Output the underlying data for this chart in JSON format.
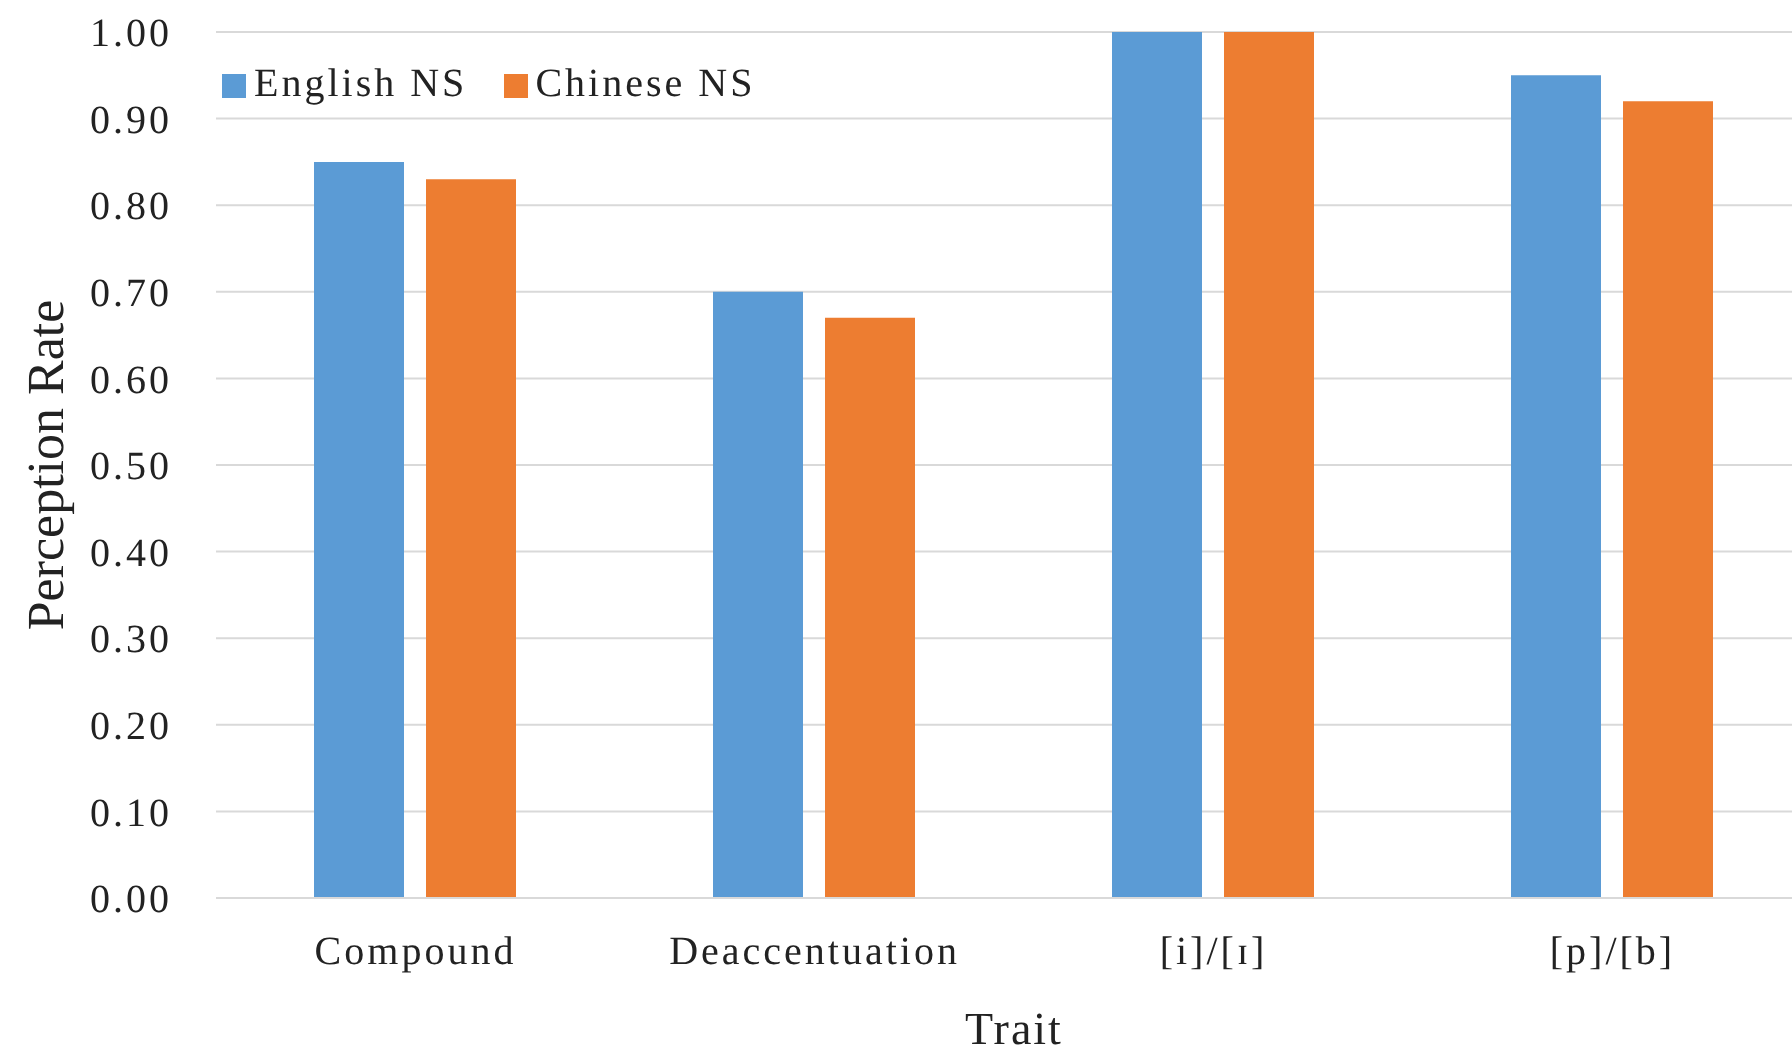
{
  "chart_data": {
    "type": "bar",
    "xlabel": "Trait",
    "ylabel": "Perception Rate",
    "categories": [
      "Compound",
      "Deaccentuation",
      "[i]/[ɪ]",
      "[p]/[b]"
    ],
    "series": [
      {
        "name": "English NS",
        "color": "#5b9bd5",
        "values": [
          0.85,
          0.7,
          1.0,
          0.95
        ]
      },
      {
        "name": "Chinese NS",
        "color": "#ed7d31",
        "values": [
          0.83,
          0.67,
          1.0,
          0.92
        ]
      }
    ],
    "ylim": [
      0,
      1
    ],
    "yticks": [
      {
        "value": 0,
        "label": "0.00"
      },
      {
        "value": 0.1,
        "label": "0.10"
      },
      {
        "value": 0.2,
        "label": "0.20"
      },
      {
        "value": 0.3,
        "label": "0.30"
      },
      {
        "value": 0.4,
        "label": "0.40"
      },
      {
        "value": 0.5,
        "label": "0.50"
      },
      {
        "value": 0.6,
        "label": "0.60"
      },
      {
        "value": 0.7,
        "label": "0.70"
      },
      {
        "value": 0.8,
        "label": "0.80"
      },
      {
        "value": 0.9,
        "label": "0.90"
      },
      {
        "value": 1,
        "label": "1.00"
      }
    ],
    "grid": "y",
    "legend": "top left"
  }
}
